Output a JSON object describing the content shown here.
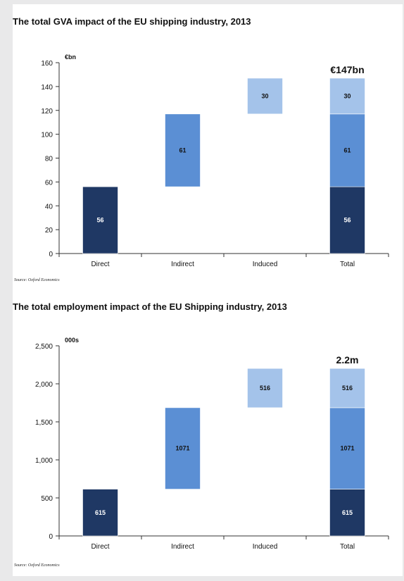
{
  "colors": {
    "direct": "#1f3864",
    "indirect": "#5b8fd4",
    "induced": "#a4c3ea",
    "value_light": "#ffffff",
    "value_dark": "#111111"
  },
  "chart_data": [
    {
      "type": "bar",
      "subtype": "waterfall",
      "title": "The total GVA impact of the EU shipping industry, 2013",
      "unit_label": "€bn",
      "total_label": "€147bn",
      "source": "Source: Oxford Economics",
      "categories": [
        "Direct",
        "Indirect",
        "Induced",
        "Total"
      ],
      "series": [
        {
          "name": "Direct",
          "values": [
            56,
            null,
            null,
            56
          ]
        },
        {
          "name": "Indirect",
          "values": [
            null,
            61,
            null,
            61
          ]
        },
        {
          "name": "Induced",
          "values": [
            null,
            null,
            30,
            30
          ]
        }
      ],
      "y_ticks": [
        "0",
        "20",
        "40",
        "60",
        "80",
        "100",
        "120",
        "140",
        "160"
      ],
      "ylim": [
        0,
        160
      ],
      "grid": false
    },
    {
      "type": "bar",
      "subtype": "waterfall",
      "title": "The total employment impact of the EU Shipping industry, 2013",
      "unit_label": "000s",
      "total_label": "2.2m",
      "source": "Source: Oxford Economics",
      "categories": [
        "Direct",
        "Indirect",
        "Induced",
        "Total"
      ],
      "series": [
        {
          "name": "Direct",
          "values": [
            615,
            null,
            null,
            615
          ]
        },
        {
          "name": "Indirect",
          "values": [
            null,
            1071,
            null,
            1071
          ]
        },
        {
          "name": "Induced",
          "values": [
            null,
            null,
            516,
            516
          ]
        }
      ],
      "y_ticks": [
        "0",
        "500",
        "1,000",
        "1,500",
        "2,000",
        "2,500"
      ],
      "ylim": [
        0,
        2500
      ],
      "grid": false
    }
  ]
}
